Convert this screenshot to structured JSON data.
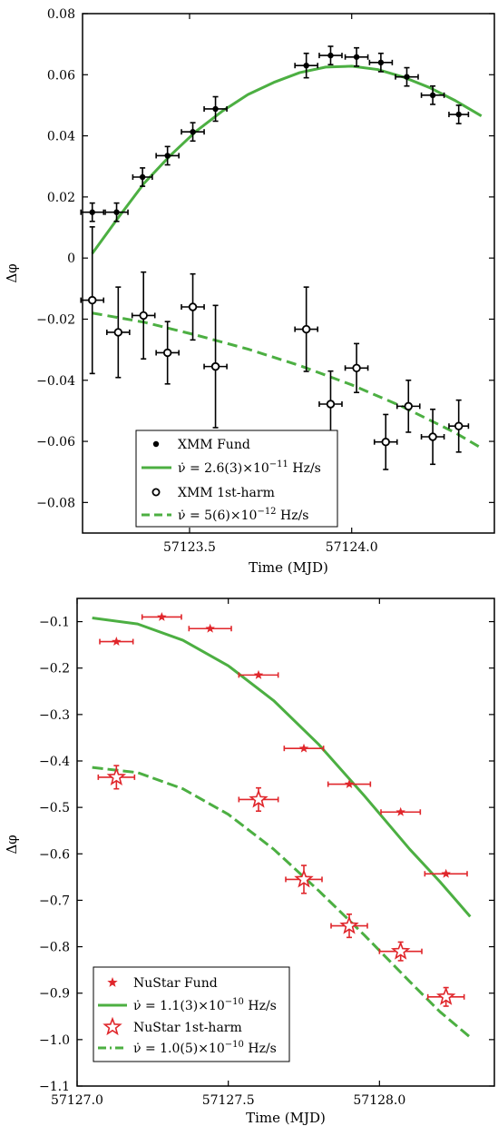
{
  "colors": {
    "green": "#4caf42",
    "red": "#e0262b",
    "black": "#000000"
  },
  "panels": [
    {
      "xlabel": "Time (MJD)",
      "ylabel": "Δφ",
      "xlim": [
        57123.17,
        57124.44
      ],
      "ylim": [
        -0.09,
        0.08
      ],
      "xticks": [
        57123.5,
        57124.0
      ],
      "xtick_labels": [
        "57123.5",
        "57124.0"
      ],
      "yticks": [
        -0.08,
        -0.06,
        -0.04,
        -0.02,
        0,
        0.02,
        0.04,
        0.06,
        0.08
      ],
      "ytick_labels": [
        "−0.08",
        "−0.06",
        "−0.04",
        "−0.02",
        "0",
        "0.02",
        "0.04",
        "0.06",
        "0.08"
      ]
    },
    {
      "xlabel": "Time (MJD)",
      "ylabel": "Δφ",
      "xlim": [
        57127.0,
        57128.38
      ],
      "ylim": [
        -1.1,
        -0.05
      ],
      "xticks": [
        57127.0,
        57127.5,
        57128.0
      ],
      "xtick_labels": [
        "57127.0",
        "57127.5",
        "57128.0"
      ],
      "yticks": [
        -1.1,
        -1.0,
        -0.9,
        -0.8,
        -0.7,
        -0.6,
        -0.5,
        -0.4,
        -0.3,
        -0.2,
        -0.1
      ],
      "ytick_labels": [
        "−1.1",
        "−1.0",
        "−0.9",
        "−0.8",
        "−0.7",
        "−0.6",
        "−0.5",
        "−0.4",
        "−0.3",
        "−0.2",
        "−0.1"
      ]
    }
  ],
  "chart_data": [
    {
      "type": "scatter",
      "title": "",
      "xlabel": "Time (MJD)",
      "ylabel": "Δφ",
      "xlim": [
        57123.17,
        57124.44
      ],
      "ylim": [
        -0.09,
        0.08
      ],
      "legend_position": "bottom-center",
      "series": [
        {
          "name": "XMM Fund",
          "marker": "filled-circle",
          "color": "#000000",
          "points": [
            {
              "x": 57123.2,
              "y": 0.015,
              "xerr": 0.035,
              "yerr": 0.003
            },
            {
              "x": 57123.275,
              "y": 0.015,
              "xerr": 0.035,
              "yerr": 0.003
            },
            {
              "x": 57123.355,
              "y": 0.0265,
              "xerr": 0.03,
              "yerr": 0.003
            },
            {
              "x": 57123.432,
              "y": 0.0335,
              "xerr": 0.035,
              "yerr": 0.003
            },
            {
              "x": 57123.51,
              "y": 0.0413,
              "xerr": 0.035,
              "yerr": 0.003
            },
            {
              "x": 57123.58,
              "y": 0.0488,
              "xerr": 0.035,
              "yerr": 0.004
            },
            {
              "x": 57123.86,
              "y": 0.063,
              "xerr": 0.035,
              "yerr": 0.004
            },
            {
              "x": 57123.935,
              "y": 0.0663,
              "xerr": 0.035,
              "yerr": 0.003
            },
            {
              "x": 57124.015,
              "y": 0.0658,
              "xerr": 0.035,
              "yerr": 0.003
            },
            {
              "x": 57124.09,
              "y": 0.064,
              "xerr": 0.035,
              "yerr": 0.003
            },
            {
              "x": 57124.17,
              "y": 0.0593,
              "xerr": 0.035,
              "yerr": 0.003
            },
            {
              "x": 57124.25,
              "y": 0.0533,
              "xerr": 0.035,
              "yerr": 0.003
            },
            {
              "x": 57124.33,
              "y": 0.047,
              "xerr": 0.03,
              "yerr": 0.003
            }
          ]
        },
        {
          "name": "XMM 1st-harm",
          "marker": "open-circle",
          "color": "#000000",
          "points": [
            {
              "x": 57123.2,
              "y": -0.0138,
              "xerr": 0.035,
              "yerr": 0.024
            },
            {
              "x": 57123.28,
              "y": -0.0243,
              "xerr": 0.035,
              "yerr": 0.0148
            },
            {
              "x": 57123.358,
              "y": -0.0188,
              "xerr": 0.035,
              "yerr": 0.0142
            },
            {
              "x": 57123.432,
              "y": -0.031,
              "xerr": 0.035,
              "yerr": 0.0102
            },
            {
              "x": 57123.51,
              "y": -0.016,
              "xerr": 0.035,
              "yerr": 0.0108
            },
            {
              "x": 57123.58,
              "y": -0.0355,
              "xerr": 0.035,
              "yerr": 0.02
            },
            {
              "x": 57123.86,
              "y": -0.0233,
              "xerr": 0.035,
              "yerr": 0.0138
            },
            {
              "x": 57123.935,
              "y": -0.0478,
              "xerr": 0.035,
              "yerr": 0.0108
            },
            {
              "x": 57124.015,
              "y": -0.036,
              "xerr": 0.035,
              "yerr": 0.008
            },
            {
              "x": 57124.105,
              "y": -0.0602,
              "xerr": 0.035,
              "yerr": 0.009
            },
            {
              "x": 57124.175,
              "y": -0.0485,
              "xerr": 0.035,
              "yerr": 0.0085
            },
            {
              "x": 57124.25,
              "y": -0.0585,
              "xerr": 0.035,
              "yerr": 0.009
            },
            {
              "x": 57124.33,
              "y": -0.055,
              "xerr": 0.03,
              "yerr": 0.0085
            }
          ]
        },
        {
          "name": "ν̇ = 2.6(3)×10⁻¹¹ Hz/s",
          "kind": "fit-solid",
          "color": "#4caf42",
          "x": [
            57123.2,
            57123.28,
            57123.36,
            57123.44,
            57123.52,
            57123.6,
            57123.68,
            57123.76,
            57123.84,
            57123.92,
            57124.0,
            57124.08,
            57124.16,
            57124.24,
            57124.32,
            57124.4
          ],
          "y": [
            0.0015,
            0.0132,
            0.0245,
            0.0335,
            0.0415,
            0.048,
            0.0535,
            0.0575,
            0.0607,
            0.0625,
            0.0628,
            0.0617,
            0.0592,
            0.0558,
            0.0515,
            0.0465
          ]
        },
        {
          "name": "ν̇ = 5(6)×10⁻¹² Hz/s",
          "kind": "fit-dashed",
          "color": "#4caf42",
          "x": [
            57123.2,
            57123.36,
            57123.52,
            57123.68,
            57123.84,
            57124.0,
            57124.16,
            57124.32,
            57124.4
          ],
          "y": [
            -0.018,
            -0.021,
            -0.0252,
            -0.0298,
            -0.0352,
            -0.0415,
            -0.0488,
            -0.0572,
            -0.0622
          ]
        }
      ]
    },
    {
      "type": "scatter",
      "title": "",
      "xlabel": "Time (MJD)",
      "ylabel": "Δφ",
      "xlim": [
        57127.0,
        57128.38
      ],
      "ylim": [
        -1.1,
        -0.05
      ],
      "legend_position": "bottom-left",
      "series": [
        {
          "name": "NuStar Fund",
          "marker": "filled-star",
          "color": "#e0262b",
          "points": [
            {
              "x": 57127.13,
              "y": -0.143,
              "xerr": 0.055
            },
            {
              "x": 57127.28,
              "y": -0.09,
              "xerr": 0.065
            },
            {
              "x": 57127.44,
              "y": -0.115,
              "xerr": 0.07
            },
            {
              "x": 57127.6,
              "y": -0.215,
              "xerr": 0.065
            },
            {
              "x": 57127.75,
              "y": -0.373,
              "xerr": 0.065
            },
            {
              "x": 57127.9,
              "y": -0.45,
              "xerr": 0.07
            },
            {
              "x": 57128.07,
              "y": -0.51,
              "xerr": 0.065
            },
            {
              "x": 57128.22,
              "y": -0.643,
              "xerr": 0.07
            }
          ]
        },
        {
          "name": "NuStar 1st-harm",
          "marker": "open-star",
          "color": "#e0262b",
          "points": [
            {
              "x": 57127.13,
              "y": -0.435,
              "xerr": 0.06,
              "yerr": 0.025
            },
            {
              "x": 57127.6,
              "y": -0.483,
              "xerr": 0.065,
              "yerr": 0.025
            },
            {
              "x": 57127.75,
              "y": -0.655,
              "xerr": 0.06,
              "yerr": 0.03
            },
            {
              "x": 57127.9,
              "y": -0.755,
              "xerr": 0.06,
              "yerr": 0.025
            },
            {
              "x": 57128.07,
              "y": -0.81,
              "xerr": 0.07,
              "yerr": 0.02
            },
            {
              "x": 57128.22,
              "y": -0.908,
              "xerr": 0.06,
              "yerr": 0.02
            }
          ]
        },
        {
          "name": "ν̇ = 1.1(3)×10⁻¹⁰ Hz/s",
          "kind": "fit-solid",
          "color": "#4caf42",
          "x": [
            57127.05,
            57127.2,
            57127.35,
            57127.5,
            57127.65,
            57127.8,
            57127.95,
            57128.1,
            57128.2,
            57128.3
          ],
          "y": [
            -0.092,
            -0.105,
            -0.14,
            -0.195,
            -0.27,
            -0.365,
            -0.475,
            -0.59,
            -0.66,
            -0.735
          ]
        },
        {
          "name": "ν̇ = 1.0(5)×10⁻¹⁰ Hz/s",
          "kind": "fit-dashed",
          "color": "#4caf42",
          "x": [
            57127.05,
            57127.2,
            57127.35,
            57127.5,
            57127.65,
            57127.8,
            57127.95,
            57128.1,
            57128.2,
            57128.3
          ],
          "y": [
            -0.414,
            -0.425,
            -0.46,
            -0.515,
            -0.59,
            -0.68,
            -0.775,
            -0.875,
            -0.94,
            -0.995
          ]
        }
      ]
    }
  ],
  "legends": [
    {
      "fund_label": "XMM Fund",
      "fund_fit_label": "ν̇ = 2.6(3)×10",
      "fund_fit_exp": "−11",
      "fund_fit_unit": " Hz/s",
      "harm_label": "XMM 1st-harm",
      "harm_fit_label": "ν̇ = 5(6)×10",
      "harm_fit_exp": "−12",
      "harm_fit_unit": " Hz/s"
    },
    {
      "fund_label": "NuStar Fund",
      "fund_fit_label": "ν̇ = 1.1(3)×10",
      "fund_fit_exp": "−10",
      "fund_fit_unit": " Hz/s",
      "harm_label": "NuStar 1st-harm",
      "harm_fit_label": "ν̇ = 1.0(5)×10",
      "harm_fit_exp": "−10",
      "harm_fit_unit": " Hz/s"
    }
  ]
}
